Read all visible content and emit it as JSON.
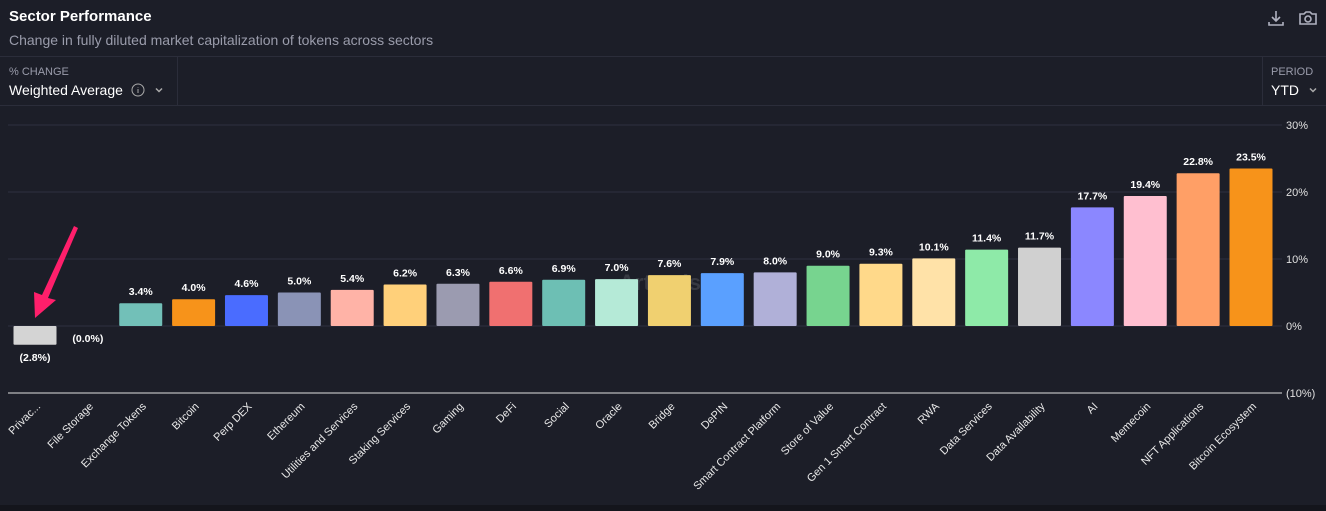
{
  "header": {
    "title": "Sector Performance",
    "subtitle": "Change in fully diluted market capitalization of tokens across sectors",
    "icons": [
      "download-icon",
      "camera-icon"
    ]
  },
  "controls": {
    "change_label": "% CHANGE",
    "change_value": "Weighted Average",
    "period_label": "PERIOD",
    "period_value": "YTD"
  },
  "watermark": "Artemis",
  "chart_data": {
    "type": "bar",
    "title": "",
    "xlabel": "",
    "ylabel": "",
    "ylim": [
      -10,
      30
    ],
    "yticks": [
      "30%",
      "20%",
      "10%",
      "0%",
      "(10%)"
    ],
    "ytick_values": [
      30,
      20,
      10,
      0,
      -10
    ],
    "grid": true,
    "categories": [
      "Privac...",
      "File Storage",
      "Exchange Tokens",
      "Bitcoin",
      "Perp DEX",
      "Ethereum",
      "Utilities and Services",
      "Staking Services",
      "Gaming",
      "DeFi",
      "Social",
      "Oracle",
      "Bridge",
      "DePIN",
      "Smart Contract Platform",
      "Store of Value",
      "Gen 1 Smart Contract",
      "RWA",
      "Data Services",
      "Data Availability",
      "AI",
      "Memecoin",
      "NFT Applications",
      "Bitcoin Ecosystem"
    ],
    "values": [
      -2.8,
      0.0,
      3.4,
      4.0,
      4.6,
      5.0,
      5.4,
      6.2,
      6.3,
      6.6,
      6.9,
      7.0,
      7.6,
      7.9,
      8.0,
      9.0,
      9.3,
      10.1,
      11.4,
      11.7,
      17.7,
      19.4,
      22.8,
      23.5
    ],
    "labels": [
      "(2.8%)",
      "(0.0%)",
      "3.4%",
      "4.0%",
      "4.6%",
      "5.0%",
      "5.4%",
      "6.2%",
      "6.3%",
      "6.6%",
      "6.9%",
      "7.0%",
      "7.6%",
      "7.9%",
      "8.0%",
      "9.0%",
      "9.3%",
      "10.1%",
      "11.4%",
      "11.7%",
      "17.7%",
      "19.4%",
      "22.8%",
      "23.5%"
    ],
    "colors": [
      "#d4d4d4",
      "#888888",
      "#72c0b8",
      "#f7931a",
      "#4a6cff",
      "#8a93b6",
      "#ffb3a7",
      "#ffd07a",
      "#9b9bb0",
      "#f07070",
      "#6dbfb4",
      "#b5ead7",
      "#f0d070",
      "#5aa0ff",
      "#b0b0d8",
      "#77d48f",
      "#ffd98a",
      "#ffe2a8",
      "#8eeaa8",
      "#d0d0d0",
      "#8b87ff",
      "#ffbfd0",
      "#ff9f66",
      "#f7931a"
    ],
    "annotation": {
      "type": "arrow",
      "target": "Privac...",
      "color": "#ff1f6b"
    }
  }
}
